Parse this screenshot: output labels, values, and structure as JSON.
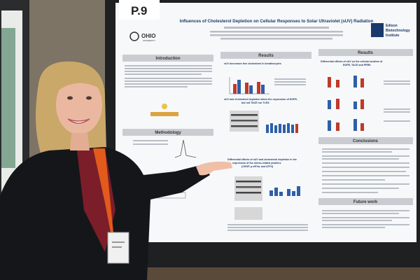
{
  "poster": {
    "number": "P.9",
    "title": "Influences of Cholesterol Depletion on Cellular Responses to Solar Ultraviolet (sUV) Radiation",
    "logo_left": "OHIO",
    "logo_left_sub": "UNIVERSITY",
    "logo_right": [
      "Edison",
      "Biotechnology",
      "Institute"
    ],
    "sections": {
      "introduction": "Introduction",
      "methodology": "Methodology",
      "results_middle": "Results",
      "results_right": "Results",
      "conclusions": "Conclusions",
      "future_work": "Future work"
    },
    "subheads": {
      "free_cholesterol": "sUV decreases free cholesterol in keratinocytes",
      "egfr_line1": "sUV and cholesterol depletion alters the expression of EGFR,",
      "egfr_line2": "but not TACE nor TLR4",
      "stress_line1": "Differential effects of sUV and cholesterol depletion in the",
      "stress_line2": "expression of the stress-related proteins",
      "stress_line3": "(CHOP, p-eIF2α, and ATF4)",
      "location_line1": "Differential effects of sUV on the cellular location of",
      "location_line2": "EGFR, TACE and PERK"
    }
  }
}
